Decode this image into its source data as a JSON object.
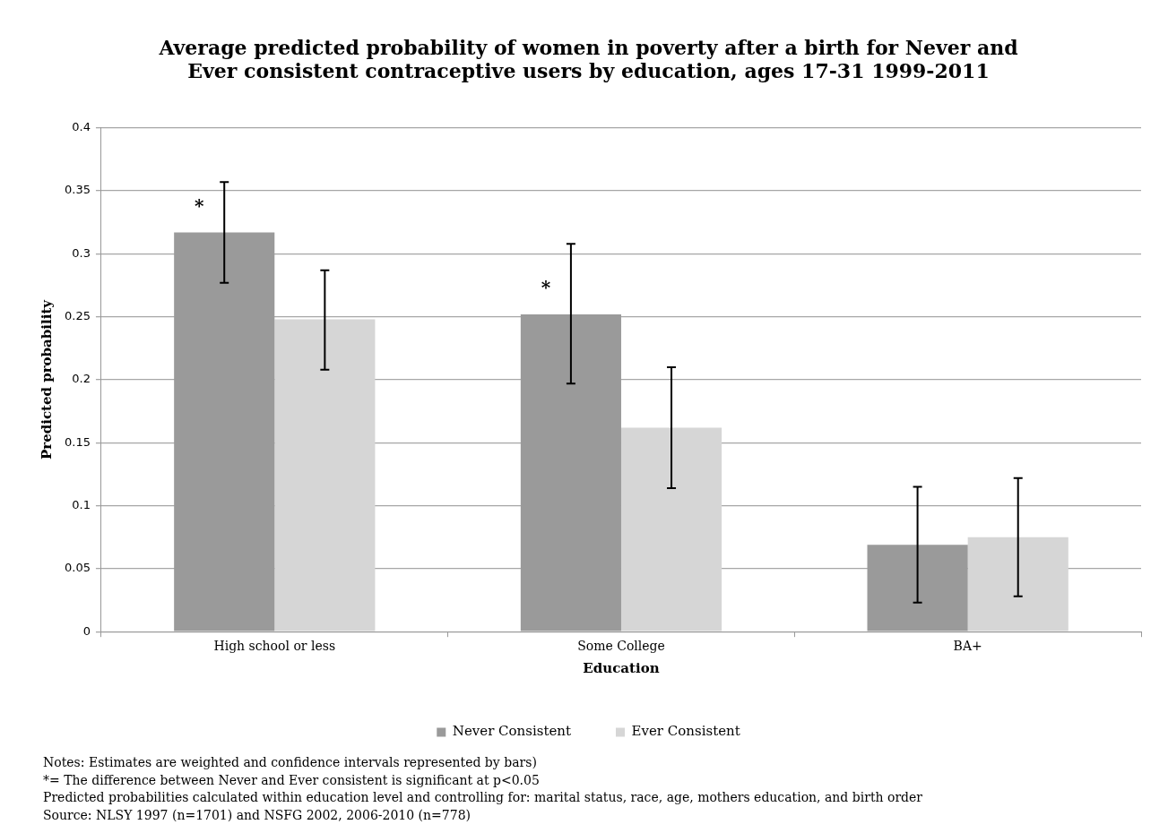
{
  "chart_data": {
    "type": "bar",
    "title": "Average predicted probability of women in poverty after a birth for Never and Ever consistent contraceptive users by education, ages 17-31 1999-2011",
    "xlabel": "Education",
    "ylabel": "Predicted probability",
    "categories": [
      "High school or less",
      "Some College",
      "BA+"
    ],
    "series": [
      {
        "name": "Never Consistent",
        "color": "#9a9a9a",
        "values": [
          0.317,
          0.252,
          0.069
        ],
        "errors": [
          [
            0.277,
            0.357
          ],
          [
            0.197,
            0.308
          ],
          [
            0.023,
            0.115
          ]
        ],
        "value_labels": [
          "*",
          "*",
          null
        ]
      },
      {
        "name": "Ever Consistent",
        "color": "#d6d6d6",
        "values": [
          0.248,
          0.162,
          0.075
        ],
        "errors": [
          [
            0.208,
            0.287
          ],
          [
            0.114,
            0.21
          ],
          [
            0.028,
            0.122
          ]
        ]
      }
    ],
    "ylim": [
      0,
      0.4
    ],
    "yticks": [
      0,
      0.05,
      0.1,
      0.15,
      0.2,
      0.25,
      0.3,
      0.35,
      0.4
    ],
    "grid": "y",
    "legend": "bottom",
    "annotations": [
      "Notes: Estimates are weighted and confidence intervals represented by bars)",
      "*= The difference between Never and Ever consistent is significant at p<0.05",
      "Predicted probabilities calculated within education level and controlling for: marital status, race, age, mothers education, and birth order",
      "Source: NLSY 1997 (n=1701) and NSFG 2002, 2006-2010 (n=778)"
    ]
  }
}
